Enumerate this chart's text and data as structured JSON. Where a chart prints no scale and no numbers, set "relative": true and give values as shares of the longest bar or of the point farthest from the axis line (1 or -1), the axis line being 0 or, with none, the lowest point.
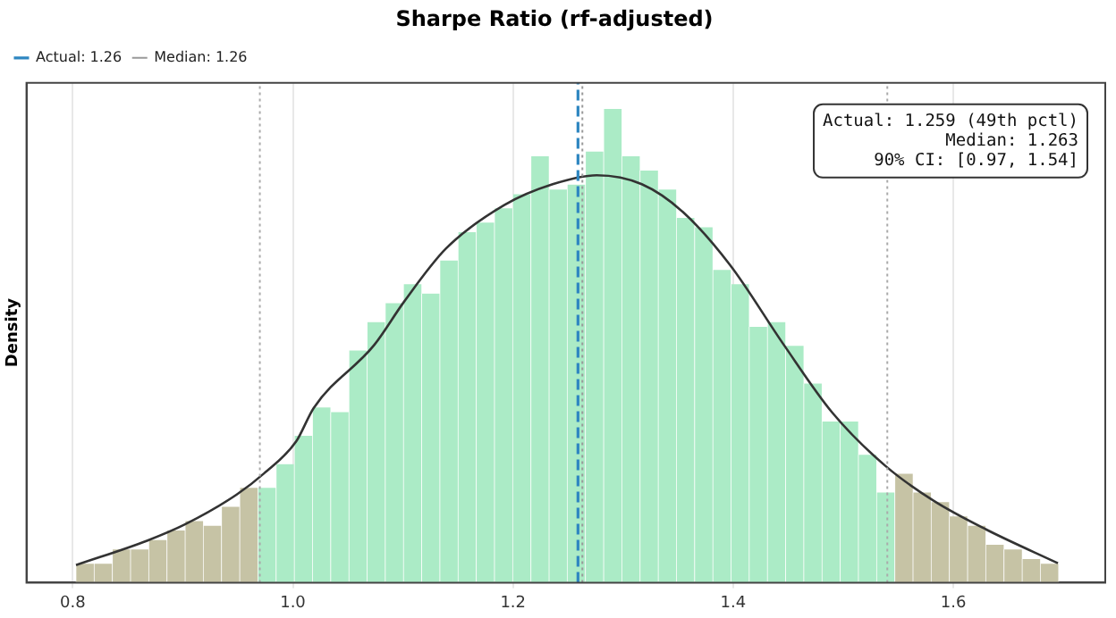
{
  "chart_data": {
    "type": "histogram",
    "title": "Sharpe Ratio (rf-adjusted)",
    "ylabel": "Density",
    "relative": true,
    "bins": [
      0.803,
      0.8195,
      0.8361,
      0.8526,
      0.8691,
      0.8857,
      0.9022,
      0.9187,
      0.9352,
      0.9518,
      0.9683,
      0.9848,
      1.0014,
      1.0179,
      1.0344,
      1.051,
      1.0675,
      1.084,
      1.1005,
      1.1171,
      1.1336,
      1.1501,
      1.1667,
      1.1832,
      1.1997,
      1.2163,
      1.2328,
      1.2493,
      1.2658,
      1.2824,
      1.2989,
      1.3154,
      1.332,
      1.3485,
      1.365,
      1.3816,
      1.3981,
      1.4146,
      1.4311,
      1.4477,
      1.4642,
      1.4807,
      1.4973,
      1.5138,
      1.5303,
      1.5469,
      1.5634,
      1.5799,
      1.5964,
      1.613,
      1.6295,
      1.646,
      1.6626,
      1.6791,
      1.6956
    ],
    "values": [
      0.04,
      0.04,
      0.07,
      0.07,
      0.09,
      0.11,
      0.13,
      0.12,
      0.16,
      0.2,
      0.2,
      0.25,
      0.31,
      0.37,
      0.36,
      0.49,
      0.55,
      0.59,
      0.63,
      0.61,
      0.68,
      0.74,
      0.76,
      0.79,
      0.82,
      0.9,
      0.83,
      0.84,
      0.91,
      1,
      0.9,
      0.87,
      0.83,
      0.77,
      0.75,
      0.66,
      0.63,
      0.54,
      0.55,
      0.5,
      0.42,
      0.34,
      0.34,
      0.27,
      0.19,
      0.23,
      0.19,
      0.17,
      0.14,
      0.12,
      0.08,
      0.07,
      0.05,
      0.04
    ],
    "colors": [
      "#c6c3a5",
      "#c6c3a5",
      "#c6c3a5",
      "#c6c3a5",
      "#c6c3a5",
      "#c6c3a5",
      "#c6c3a5",
      "#c6c3a5",
      "#c6c3a5",
      "#c6c3a5",
      "#abebc6",
      "#abebc6",
      "#abebc6",
      "#abebc6",
      "#abebc6",
      "#abebc6",
      "#abebc6",
      "#abebc6",
      "#abebc6",
      "#abebc6",
      "#abebc6",
      "#abebc6",
      "#abebc6",
      "#abebc6",
      "#abebc6",
      "#abebc6",
      "#abebc6",
      "#abebc6",
      "#abebc6",
      "#abebc6",
      "#abebc6",
      "#abebc6",
      "#abebc6",
      "#abebc6",
      "#abebc6",
      "#abebc6",
      "#abebc6",
      "#abebc6",
      "#abebc6",
      "#abebc6",
      "#abebc6",
      "#abebc6",
      "#abebc6",
      "#abebc6",
      "#abebc6",
      "#c6c3a5",
      "#c6c3a5",
      "#c6c3a5",
      "#c6c3a5",
      "#c6c3a5",
      "#c6c3a5",
      "#c6c3a5",
      "#c6c3a5",
      "#c6c3a5"
    ],
    "series": [
      {
        "type": "line",
        "color": "#333333",
        "x": [
          0.803,
          0.868,
          0.902,
          0.949,
          0.974,
          1.003,
          1.019,
          1.074,
          1.101,
          1.139,
          1.192,
          1.236,
          1.276,
          1.317,
          1.354,
          1.397,
          1.446,
          1.49,
          1.538,
          1.582,
          1.63,
          1.695
        ],
        "values": [
          0.037,
          0.089,
          0.123,
          0.186,
          0.231,
          0.298,
          0.369,
          0.502,
          0.593,
          0.705,
          0.797,
          0.841,
          0.86,
          0.841,
          0.783,
          0.671,
          0.502,
          0.359,
          0.247,
          0.173,
          0.112,
          0.041
        ]
      }
    ],
    "xlim": [
      0.758,
      1.738
    ],
    "xticks": [
      0.8,
      {
        "value": 1,
        "label": "1.0"
      },
      1.2,
      1.4,
      1.6
    ],
    "grid": "x",
    "legend": "top left",
    "ref_lines": [
      {
        "axis": "x",
        "value": 1.259,
        "label": "Actual: 1.26",
        "color": "#2e86c1",
        "line_style": "dashed"
      },
      {
        "axis": "x",
        "value": 1.263,
        "label": "Median: 1.26",
        "color": "#999999",
        "line_style": "dotted"
      },
      {
        "axis": "x",
        "value": 0.97,
        "color": "#aaaaaa",
        "line_style": "dotted"
      },
      {
        "axis": "x",
        "value": 1.54,
        "color": "#aaaaaa",
        "line_style": "dotted"
      }
    ],
    "annotations": [
      "Actual: 1.259 (49th pctl)",
      "Median: 1.263",
      "90% CI: [0.97, 1.54]"
    ]
  }
}
